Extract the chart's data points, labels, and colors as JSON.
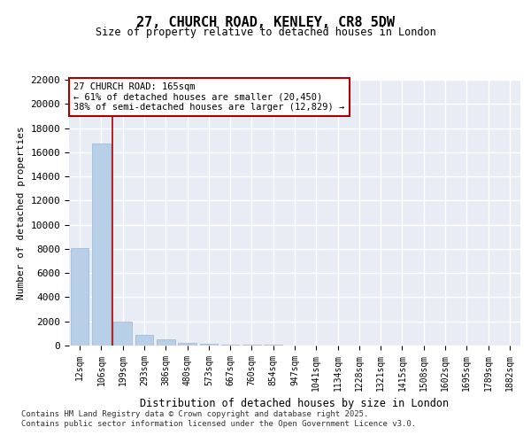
{
  "title": "27, CHURCH ROAD, KENLEY, CR8 5DW",
  "subtitle": "Size of property relative to detached houses in London",
  "xlabel": "Distribution of detached houses by size in London",
  "ylabel": "Number of detached properties",
  "annotation_title": "27 CHURCH ROAD: 165sqm",
  "annotation_line1": "← 61% of detached houses are smaller (20,450)",
  "annotation_line2": "38% of semi-detached houses are larger (12,829) →",
  "categories": [
    "12sqm",
    "106sqm",
    "199sqm",
    "293sqm",
    "386sqm",
    "480sqm",
    "573sqm",
    "667sqm",
    "760sqm",
    "854sqm",
    "947sqm",
    "1041sqm",
    "1134sqm",
    "1228sqm",
    "1321sqm",
    "1415sqm",
    "1508sqm",
    "1602sqm",
    "1695sqm",
    "1789sqm",
    "1882sqm"
  ],
  "values": [
    8100,
    16750,
    1950,
    900,
    480,
    200,
    150,
    100,
    50,
    50,
    30,
    0,
    0,
    0,
    0,
    0,
    0,
    0,
    0,
    0,
    0
  ],
  "bar_color": "#b8cfe8",
  "bar_edgecolor": "#9ab5d5",
  "vline_color": "#aa0000",
  "vline_x": 1.5,
  "ylim": [
    0,
    22000
  ],
  "yticks": [
    0,
    2000,
    4000,
    6000,
    8000,
    10000,
    12000,
    14000,
    16000,
    18000,
    20000,
    22000
  ],
  "plot_bg_color": "#e8ecf5",
  "grid_color": "#ffffff",
  "annotation_box_edgecolor": "#aa0000",
  "annotation_box_facecolor": "#ffffff",
  "footnote_line1": "Contains HM Land Registry data © Crown copyright and database right 2025.",
  "footnote_line2": "Contains public sector information licensed under the Open Government Licence v3.0."
}
